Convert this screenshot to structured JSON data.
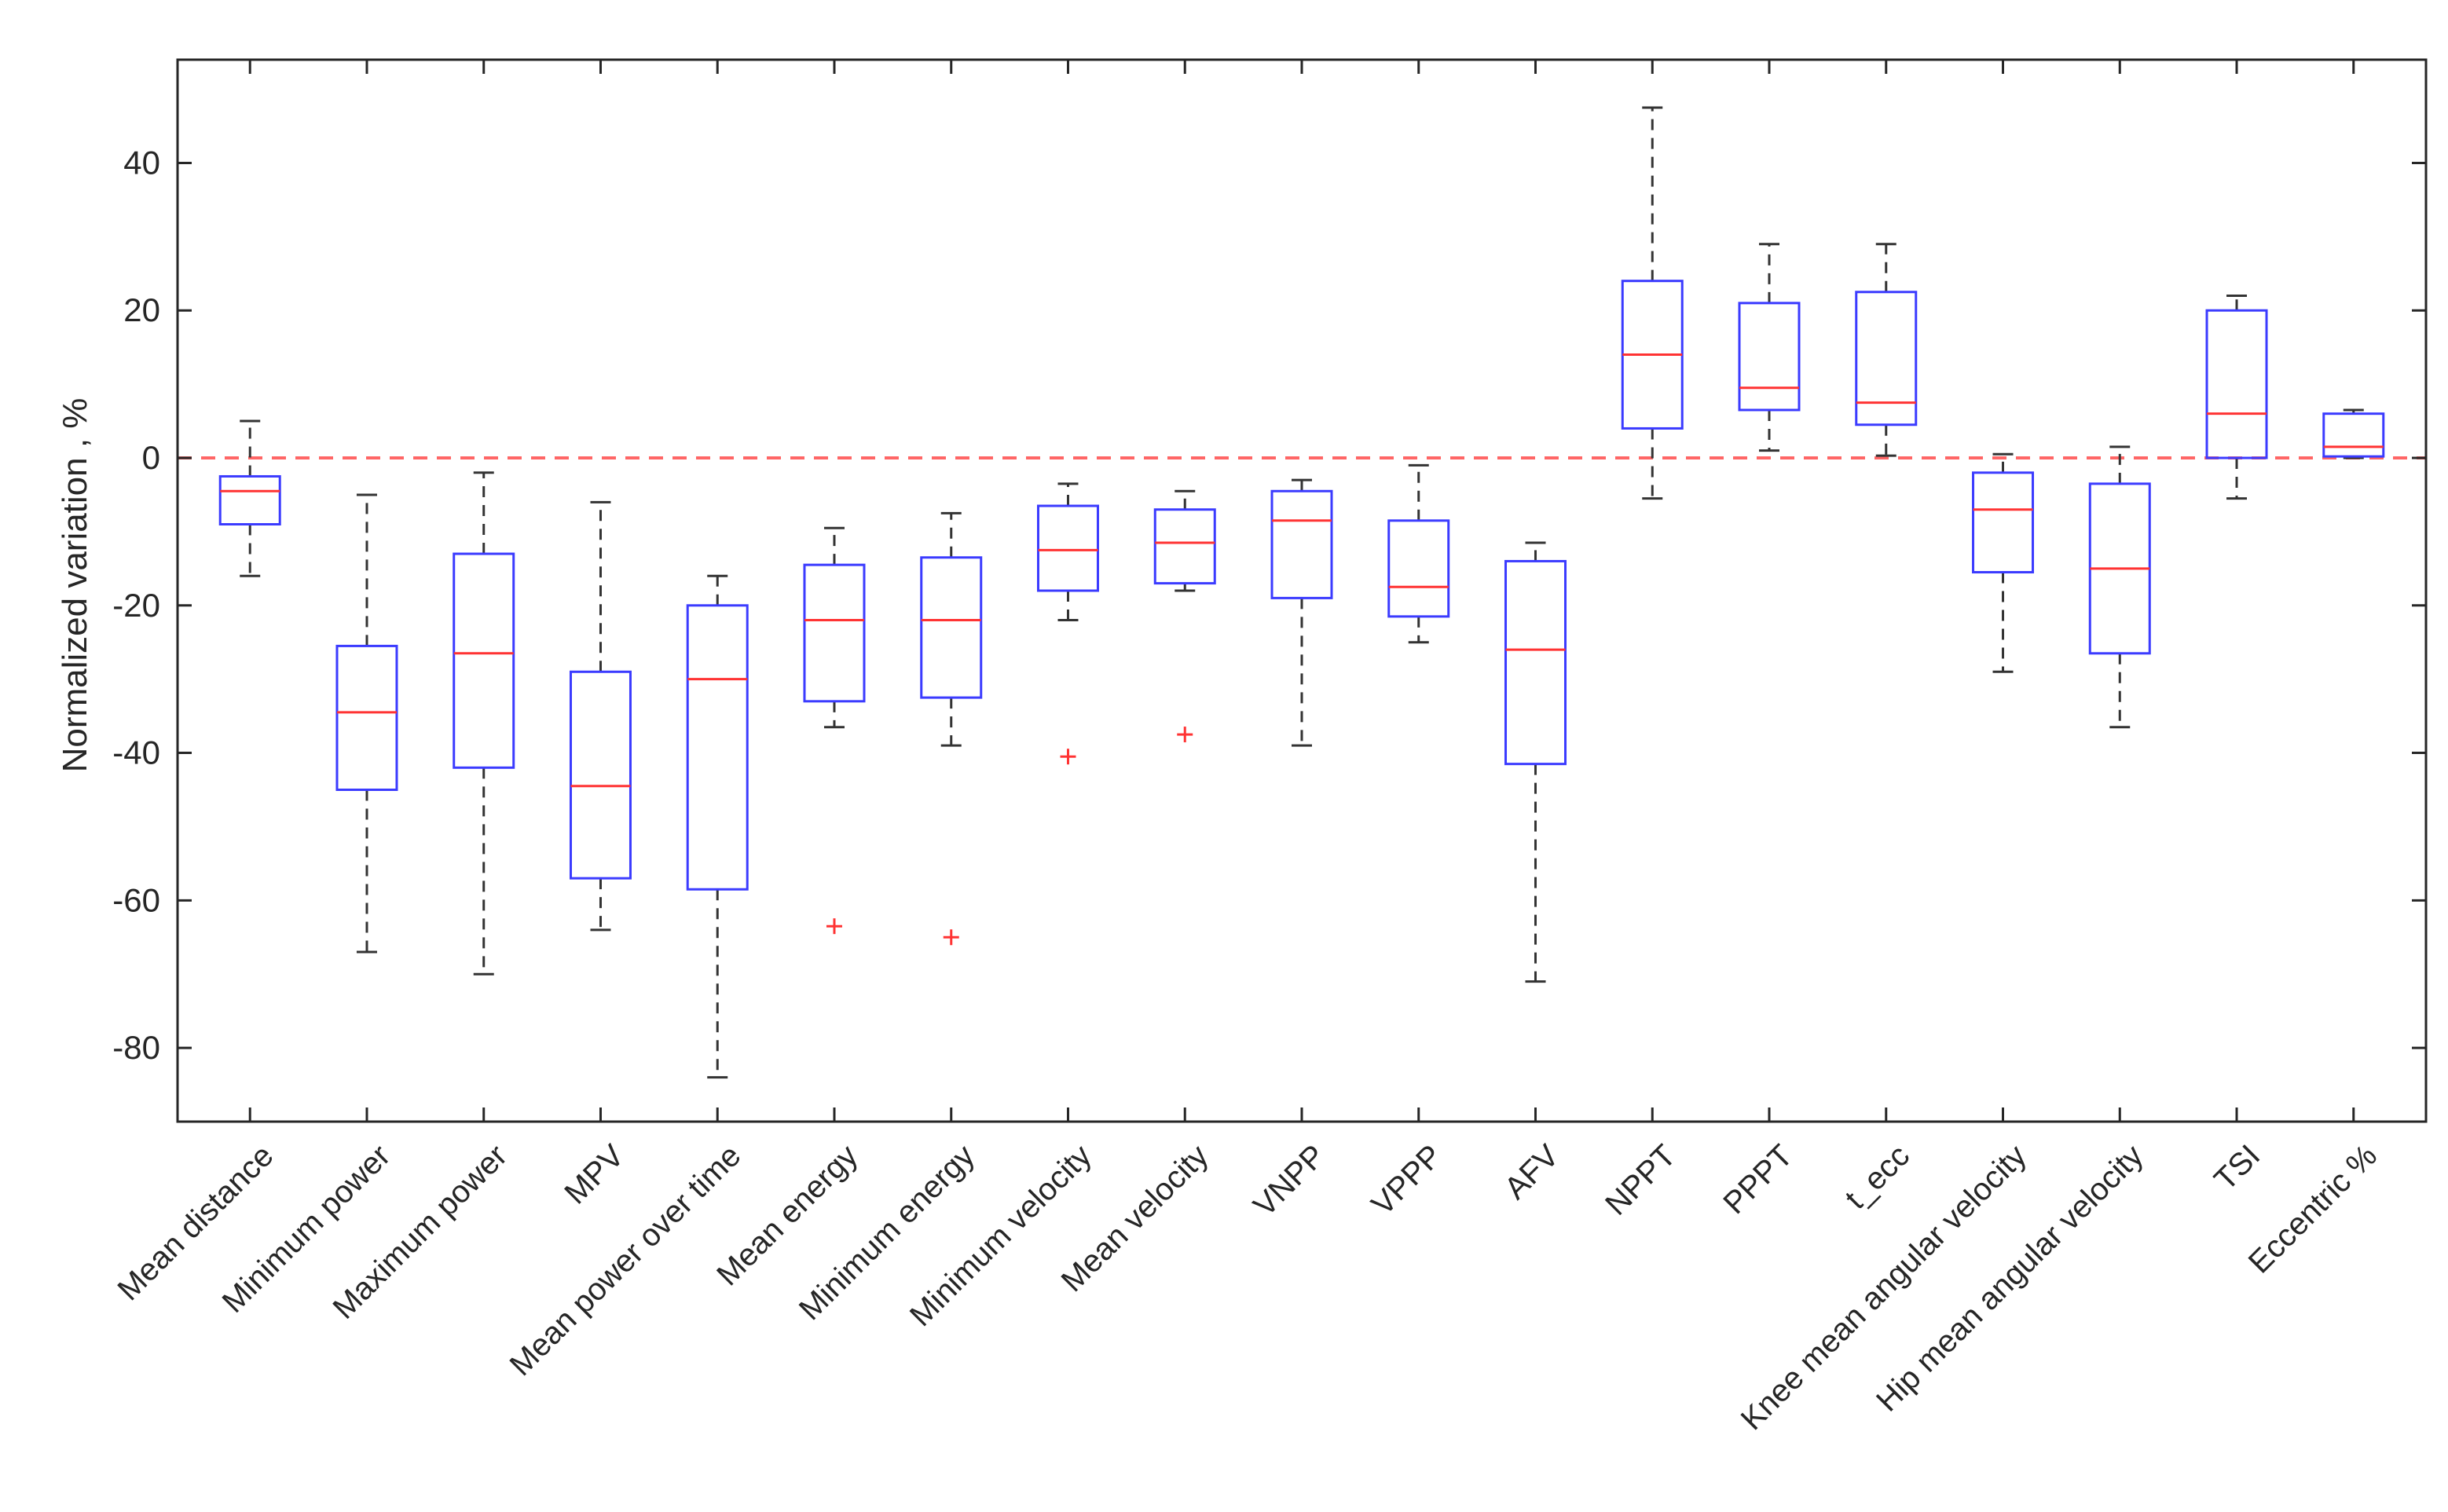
{
  "chart_data": {
    "type": "box",
    "title": "",
    "xlabel": "",
    "ylabel": "Normalized variation , %",
    "ylim": [
      -90,
      54
    ],
    "yticks": [
      -80,
      -60,
      -40,
      -20,
      0,
      20,
      40
    ],
    "ytick_labels": [
      "-80",
      "-60",
      "-40",
      "-20",
      "0",
      "20",
      "40"
    ],
    "grid": false,
    "legend": "none",
    "reference_line": {
      "y": 0,
      "style": "dashed"
    },
    "colors": {
      "box": "#3b3bff",
      "median": "#ff3333",
      "whisker": "#333333",
      "outlier": "#ff3333",
      "reference": "#ff6666",
      "axis": "#262626"
    },
    "categories": [
      "Mean distance",
      "Minimum power",
      "Maximum power",
      "MPV",
      "Mean power over time",
      "Mean energy",
      "Minimum energy",
      "Minimum velocity",
      "Mean velocity",
      "VNPP",
      "VPPP",
      "AFV",
      "NPPT",
      "PPPT",
      "t_ecc",
      "Knee mean angular velocity",
      "Hip mean angular velocity",
      "TSI",
      "Eccentric %"
    ],
    "boxes": [
      {
        "whisker_low": -16,
        "q1": -9,
        "median": -4.5,
        "q3": -2.5,
        "whisker_high": 5,
        "outliers": []
      },
      {
        "whisker_low": -67,
        "q1": -45,
        "median": -34.5,
        "q3": -25.5,
        "whisker_high": -5,
        "outliers": []
      },
      {
        "whisker_low": -70,
        "q1": -42,
        "median": -26.5,
        "q3": -13,
        "whisker_high": -2,
        "outliers": []
      },
      {
        "whisker_low": -64,
        "q1": -57,
        "median": -44.5,
        "q3": -29,
        "whisker_high": -6,
        "outliers": []
      },
      {
        "whisker_low": -84,
        "q1": -58.5,
        "median": -30,
        "q3": -20,
        "whisker_high": -16,
        "outliers": []
      },
      {
        "whisker_low": -36.5,
        "q1": -33,
        "median": -22,
        "q3": -14.5,
        "whisker_high": -9.5,
        "outliers": [
          -63.5
        ]
      },
      {
        "whisker_low": -39,
        "q1": -32.5,
        "median": -22,
        "q3": -13.5,
        "whisker_high": -7.5,
        "outliers": [
          -65
        ]
      },
      {
        "whisker_low": -22,
        "q1": -18,
        "median": -12.5,
        "q3": -6.5,
        "whisker_high": -3.5,
        "outliers": [
          -40.5
        ]
      },
      {
        "whisker_low": -18,
        "q1": -17,
        "median": -11.5,
        "q3": -7,
        "whisker_high": -4.5,
        "outliers": [
          -37.5
        ]
      },
      {
        "whisker_low": -39,
        "q1": -19,
        "median": -8.5,
        "q3": -4.5,
        "whisker_high": -3,
        "outliers": []
      },
      {
        "whisker_low": -25,
        "q1": -21.5,
        "median": -17.5,
        "q3": -8.5,
        "whisker_high": -1,
        "outliers": []
      },
      {
        "whisker_low": -71,
        "q1": -41.5,
        "median": -26,
        "q3": -14,
        "whisker_high": -11.5,
        "outliers": []
      },
      {
        "whisker_low": -5.5,
        "q1": 4,
        "median": 14,
        "q3": 24,
        "whisker_high": 47.5,
        "outliers": []
      },
      {
        "whisker_low": 1,
        "q1": 6.5,
        "median": 9.5,
        "q3": 21,
        "whisker_high": 29,
        "outliers": []
      },
      {
        "whisker_low": 0.3,
        "q1": 4.5,
        "median": 7.5,
        "q3": 22.5,
        "whisker_high": 29,
        "outliers": []
      },
      {
        "whisker_low": -29,
        "q1": -15.5,
        "median": -7,
        "q3": -2,
        "whisker_high": 0.5,
        "outliers": []
      },
      {
        "whisker_low": -36.5,
        "q1": -26.5,
        "median": -15,
        "q3": -3.5,
        "whisker_high": 1.5,
        "outliers": []
      },
      {
        "whisker_low": -5.5,
        "q1": 0,
        "median": 6,
        "q3": 20,
        "whisker_high": 22,
        "outliers": []
      },
      {
        "whisker_low": 0,
        "q1": 0.2,
        "median": 1.5,
        "q3": 6,
        "whisker_high": 6.5,
        "outliers": []
      }
    ]
  }
}
